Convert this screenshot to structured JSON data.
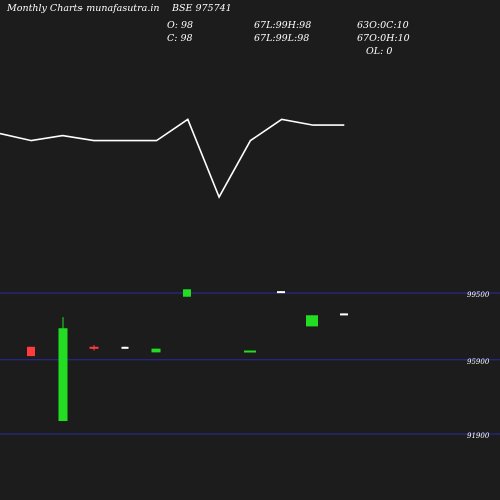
{
  "header": {
    "brand": "Monthly Charts",
    "site": "- munafasutra.in",
    "symbol": "BSE 975741",
    "open_label": "O: 98",
    "close_label": "C: 98",
    "h_overlap": "67L:99H:98",
    "l_overlap": "67L:99L:98",
    "r1_overlap": "63O:0C:10",
    "r2_overlap": "67O:0H:10",
    "ol_label": "OL: 0"
  },
  "chart_data": {
    "type": "candlestick",
    "title": "",
    "price_axis": {
      "labels": [
        "99500",
        "95900",
        "91900"
      ],
      "ticks": [
        99500,
        95900,
        91900
      ]
    },
    "line_series": {
      "values": [
        6,
        7,
        6.3,
        7,
        7,
        7,
        4,
        15,
        7,
        4,
        4.8,
        4.8
      ]
    },
    "candles": [
      {
        "open": 96600,
        "close": 96100,
        "high": 96600,
        "low": 96100,
        "color": "#ff3b3b"
      },
      {
        "open": 92600,
        "close": 97600,
        "high": 98200,
        "low": 92600,
        "color": "#22dd22"
      },
      {
        "open": 96600,
        "close": 96500,
        "high": 96700,
        "low": 96400,
        "color": "#ff3b3b"
      },
      {
        "open": 96600,
        "close": 96500,
        "high": 96600,
        "low": 96500,
        "color": "#ffffff"
      },
      {
        "open": 96300,
        "close": 96500,
        "high": 96500,
        "low": 96300,
        "color": "#22dd22"
      },
      {
        "open": 99300,
        "close": 99700,
        "high": 99700,
        "low": 99300,
        "color": "#22dd22"
      },
      {
        "open": 96300,
        "close": 96400,
        "high": 96400,
        "low": 96300,
        "color": "#22dd22"
      },
      {
        "open": 99500,
        "close": 99600,
        "high": 99600,
        "low": 99500,
        "color": "#ffffff"
      },
      {
        "open": 97700,
        "close": 98300,
        "high": 98300,
        "low": 97700,
        "color": "#22dd22"
      },
      {
        "open": 98300,
        "close": 98400,
        "high": 98400,
        "low": 98300,
        "color": "#ffffff"
      }
    ],
    "colors": {
      "up": "#22dd22",
      "down": "#ff3b3b",
      "doji": "#ffffff",
      "gridline": "#2a2aa0",
      "line": "#ffffff"
    }
  }
}
